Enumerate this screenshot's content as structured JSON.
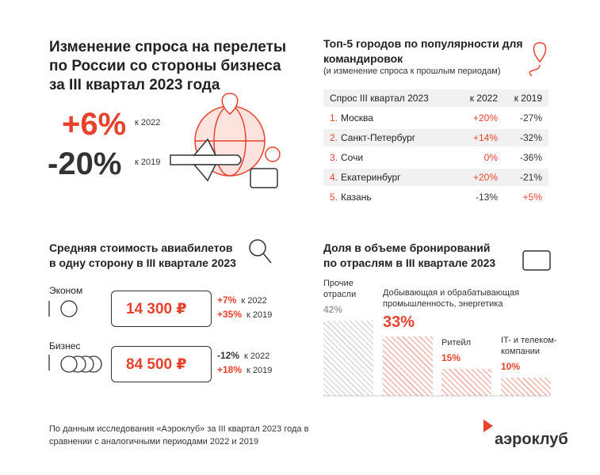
{
  "header": {
    "title": "Изменение спроса на перелеты по России со стороны бизнеса за III квартал 2023 года"
  },
  "demand": [
    {
      "value": "+6%",
      "label": "к 2022"
    },
    {
      "value": "-20%",
      "label": "к 2019"
    }
  ],
  "top_cities": {
    "title": "Топ-5 городов по популярности для командировок",
    "subtitle": "(и изменение спроса к прошлым периодам)",
    "columns": [
      "Спрос III квартал 2023",
      "к 2022",
      "к 2019"
    ],
    "rows": [
      [
        "1.",
        "Москва",
        "+20%",
        "-27%"
      ],
      [
        "2.",
        "Санкт-Петербург",
        "+14%",
        "-32%"
      ],
      [
        "3.",
        "Сочи",
        "0%",
        "-36%"
      ],
      [
        "4.",
        "Екатеринбург",
        "+20%",
        "-21%"
      ],
      [
        "5.",
        "Казань",
        "-13%",
        "+5%"
      ]
    ]
  },
  "airfare": {
    "title": "Средняя стоимость авиабилетов в одну сторону в III квартале 2023",
    "classes": [
      {
        "name": "Эконом",
        "price": "14 300 ₽",
        "changes": [
          {
            "value": "+7%",
            "label": "к 2022"
          },
          {
            "value": "+35%",
            "label": "к 2019"
          }
        ]
      },
      {
        "name": "Бизнес",
        "price": "84 500 ₽",
        "changes": [
          {
            "value": "-12%",
            "label": "к 2022"
          },
          {
            "value": "+18%",
            "label": "к 2019"
          }
        ]
      }
    ]
  },
  "sectors": {
    "title": "Доля в объеме бронирований по отраслям в III квартале 2023",
    "categories": [
      "Прочие отрасли",
      "Добывающая и обрабатывающая промышленность, энергетика",
      "Ритейл",
      "IT- и телеком-компании"
    ],
    "values": [
      42,
      33,
      15,
      10
    ],
    "value_labels": [
      "42%",
      "33%",
      "15%",
      "10%"
    ],
    "colors": [
      "#a0a0a0",
      "#e8412c",
      "#e8412c",
      "#e8412c"
    ]
  },
  "footer": {
    "note": "По данным исследования «Аэроклуб» за III квартал 2023 года в сравнении с аналогичными периодами 2022 и 2019",
    "logo": "аэроклуб"
  }
}
